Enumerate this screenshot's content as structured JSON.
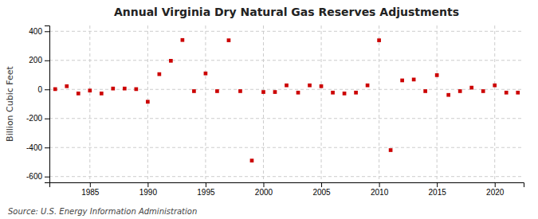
{
  "chart_data": {
    "type": "scatter",
    "title": "Annual Virginia Dry Natural Gas Reserves Adjustments",
    "ylabel": "Billion Cubic Feet",
    "source": "Source: U.S. Energy Information Administration",
    "color": "#cc0000",
    "marker": "square",
    "grid": true,
    "xlim": [
      1981.5,
      2022.5
    ],
    "ylim": [
      -640,
      440
    ],
    "xticks": [
      1985,
      1990,
      1995,
      2000,
      2005,
      2010,
      2015,
      2020
    ],
    "yticks": [
      -600,
      -400,
      -200,
      0,
      200,
      400
    ],
    "x": [
      1982,
      1983,
      1984,
      1985,
      1986,
      1987,
      1988,
      1989,
      1990,
      1991,
      1992,
      1993,
      1994,
      1995,
      1996,
      1997,
      1998,
      1999,
      2000,
      2001,
      2002,
      2003,
      2004,
      2005,
      2006,
      2007,
      2008,
      2009,
      2010,
      2011,
      2012,
      2013,
      2014,
      2015,
      2016,
      2017,
      2018,
      2019,
      2020,
      2021,
      2022
    ],
    "values": [
      2,
      22,
      -28,
      -8,
      -28,
      6,
      6,
      2,
      -85,
      105,
      197,
      340,
      -12,
      110,
      -12,
      338,
      -12,
      -490,
      -18,
      -18,
      28,
      -22,
      28,
      22,
      -22,
      -28,
      -22,
      28,
      338,
      -418,
      62,
      68,
      -12,
      98,
      -38,
      -12,
      12,
      -12,
      28,
      -22,
      -22
    ]
  }
}
